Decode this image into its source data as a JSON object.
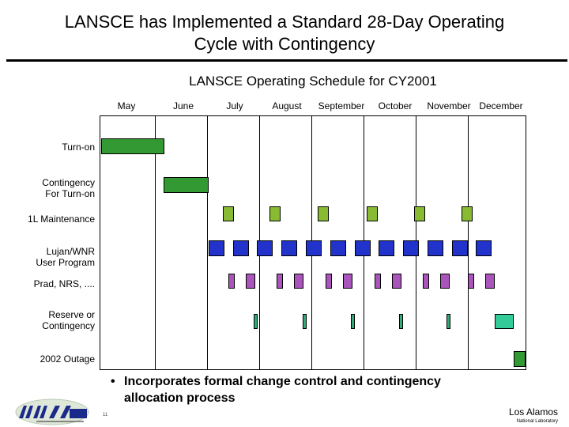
{
  "slide": {
    "title_line1": "LANSCE has Implemented a Standard 28-Day Operating",
    "title_line2": "Cycle with Contingency",
    "subtitle": "LANSCE Operating Schedule for CY2001",
    "bullet": "Incorporates formal change control and contingency allocation process",
    "bullet_line1": "Incorporates formal change control and contingency",
    "bullet_line2": "allocation process",
    "page_number": "11",
    "org_name": "Los Alamos",
    "org_sub": "National Laboratory",
    "logo_icon": "nnsa-logo-icon"
  },
  "chart_data": {
    "type": "gantt",
    "months": [
      "May",
      "June",
      "July",
      "August",
      "September",
      "October",
      "November",
      "December"
    ],
    "month_boundaries": [
      "May",
      "June",
      "July",
      "August",
      "September",
      "October",
      "November",
      "December"
    ],
    "rows": [
      {
        "label": "Turn-on",
        "color": "#339933"
      },
      {
        "label": "Contingency For Turn-on",
        "color": "#339933"
      },
      {
        "label": "1L Maintenance",
        "color": "#88bb33"
      },
      {
        "label": "Lujan/WNR User Program",
        "color": "#2233cc"
      },
      {
        "label": "Prad, NRS, ....",
        "color": "#aa55bb"
      },
      {
        "label": "Reserve or Contingency",
        "color": "#33aa77"
      },
      {
        "label": "2002 Outage",
        "color": "#339933"
      }
    ],
    "reserve_end_color": "#33cc99"
  }
}
